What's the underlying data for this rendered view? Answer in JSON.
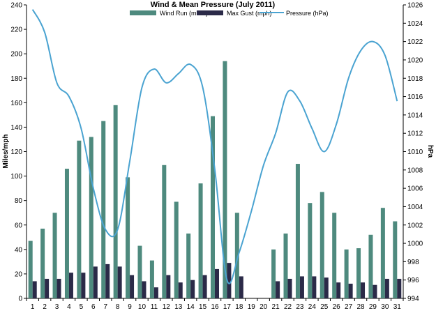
{
  "chart_data": {
    "type": "bar",
    "title": "Wind & Mean Pressure (July 2011)",
    "ylabel": "Miles/mph",
    "y2label": "hPa",
    "categories": [
      "1",
      "2",
      "3",
      "4",
      "5",
      "6",
      "7",
      "8",
      "9",
      "10",
      "11",
      "12",
      "13",
      "14",
      "15",
      "16",
      "17",
      "18",
      "19",
      "20",
      "21",
      "22",
      "23",
      "24",
      "25",
      "26",
      "27",
      "28",
      "29",
      "30",
      "31"
    ],
    "ylim": [
      0,
      240
    ],
    "y_ticks": [
      0,
      20,
      40,
      60,
      80,
      100,
      120,
      140,
      160,
      180,
      200,
      220,
      240
    ],
    "y2lim": [
      994,
      1026
    ],
    "y2_ticks": [
      994,
      996,
      998,
      1000,
      1002,
      1004,
      1006,
      1008,
      1010,
      1012,
      1014,
      1016,
      1018,
      1020,
      1022,
      1024,
      1026
    ],
    "grid": false,
    "legend_position": "top",
    "series": [
      {
        "name": "Wind Run (miles)",
        "type": "bar",
        "axis": "left",
        "color": "#4e8a7e",
        "values": [
          47,
          57,
          70,
          106,
          129,
          132,
          145,
          158,
          99,
          43,
          31,
          109,
          79,
          53,
          94,
          149,
          194,
          70,
          null,
          null,
          40,
          53,
          110,
          78,
          87,
          70,
          40,
          41,
          52,
          74,
          63
        ]
      },
      {
        "name": "Max Gust (mph)",
        "type": "bar",
        "axis": "left",
        "color": "#2b2a48",
        "values": [
          14,
          16,
          16,
          21,
          21,
          26,
          28,
          26,
          19,
          14,
          9,
          19,
          13,
          15,
          19,
          24,
          29,
          18,
          null,
          null,
          14,
          16,
          18,
          18,
          17,
          13,
          12,
          13,
          11,
          16,
          16
        ]
      },
      {
        "name": "Pressure (hPa)",
        "type": "line",
        "axis": "right",
        "color": "#4aa3d1",
        "values": [
          1025.5,
          1023,
          1017.5,
          1016,
          1012.5,
          1006,
          1001.5,
          1001.5,
          1009,
          1017,
          1019,
          1017.5,
          1018.5,
          1019.5,
          1017,
          1008,
          996,
          999,
          1003.5,
          1008.5,
          1012,
          1016.5,
          1015.5,
          1012.5,
          1010,
          1013,
          1018,
          1021,
          1022,
          1020.5,
          1015.5
        ]
      }
    ]
  }
}
